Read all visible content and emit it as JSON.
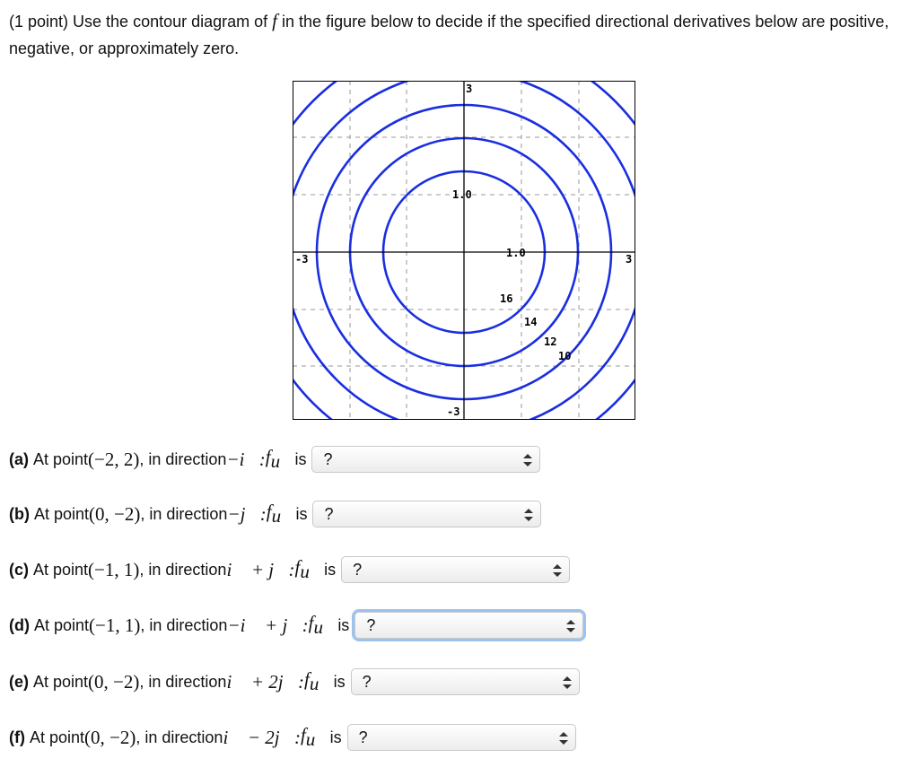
{
  "header": {
    "before": "(1 point) Use the contour diagram of",
    "f": "f",
    "after": "in the figure below to decide if the specified directional derivatives below are positive, negative, or approximately zero."
  },
  "figure": {
    "axis_labels": {
      "top": "3",
      "upper": "1.0",
      "right_inner": "1.0",
      "left": "-3",
      "right": "3",
      "bottom": "-3"
    },
    "contour_labels": [
      "16",
      "14",
      "12",
      "10"
    ]
  },
  "questions": [
    {
      "label": "(a)",
      "text": "At point",
      "point": "(−2, 2)",
      "middle": ", in direction",
      "direction": "−i⃗:",
      "f": "f",
      "sub": "u⃗",
      "is": "is",
      "answer": "?"
    },
    {
      "label": "(b)",
      "text": "At point",
      "point": "(0, −2)",
      "middle": ", in direction",
      "direction": "−j⃗:",
      "f": "f",
      "sub": "u⃗",
      "is": "is",
      "answer": "?"
    },
    {
      "label": "(c)",
      "text": "At point",
      "point": "(−1, 1)",
      "middle": ", in direction",
      "direction": "i⃗ + j⃗:",
      "f": "f",
      "sub": "u⃗",
      "is": "is",
      "answer": "?"
    },
    {
      "label": "(d)",
      "text": "At point",
      "point": "(−1, 1)",
      "middle": ", in direction",
      "direction": "−i⃗ + j⃗:",
      "f": "f",
      "sub": "u⃗",
      "is": "is",
      "answer": "?"
    },
    {
      "label": "(e)",
      "text": "At point",
      "point": "(0, −2)",
      "middle": ", in direction",
      "direction": "i⃗ + 2j⃗:",
      "f": "f",
      "sub": "u⃗",
      "is": "is",
      "answer": "?"
    },
    {
      "label": "(f)",
      "text": "At point",
      "point": "(0, −2)",
      "middle": ", in direction",
      "direction": "i⃗ − 2j⃗:",
      "f": "f",
      "sub": "u⃗",
      "is": "is",
      "answer": "?"
    }
  ]
}
